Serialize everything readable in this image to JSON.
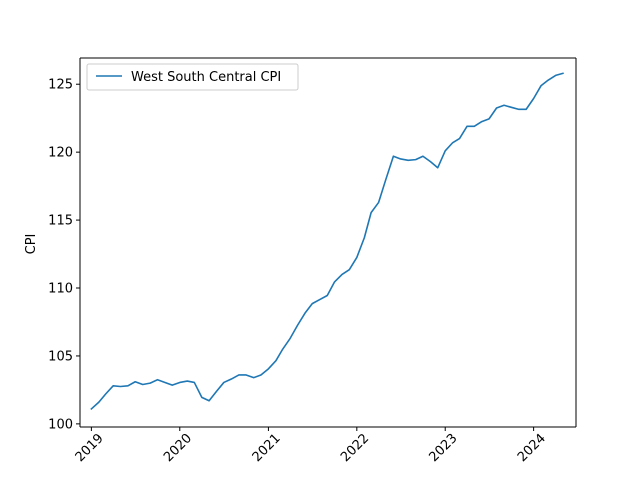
{
  "chart_data": {
    "type": "line",
    "title": "",
    "xlabel": "",
    "ylabel": "CPI",
    "xlim": [
      "2018-11-15",
      "2024-06-24"
    ],
    "ylim": [
      99.77,
      126.93
    ],
    "x_ticks": [
      "2019",
      "2020",
      "2021",
      "2022",
      "2023",
      "2024"
    ],
    "y_ticks": [
      "100",
      "105",
      "110",
      "115",
      "120",
      "125"
    ],
    "grid": false,
    "legend_position": "upper-left",
    "series": [
      {
        "name": "West South Central CPI",
        "color": "#1f77b4",
        "x": [
          "2019-01",
          "2019-02",
          "2019-03",
          "2019-04",
          "2019-05",
          "2019-06",
          "2019-07",
          "2019-08",
          "2019-09",
          "2019-10",
          "2019-11",
          "2019-12",
          "2020-01",
          "2020-02",
          "2020-03",
          "2020-04",
          "2020-05",
          "2020-06",
          "2020-07",
          "2020-08",
          "2020-09",
          "2020-10",
          "2020-11",
          "2020-12",
          "2021-01",
          "2021-02",
          "2021-03",
          "2021-04",
          "2021-05",
          "2021-06",
          "2021-07",
          "2021-08",
          "2021-09",
          "2021-10",
          "2021-11",
          "2021-12",
          "2022-01",
          "2022-02",
          "2022-03",
          "2022-04",
          "2022-05",
          "2022-06",
          "2022-07",
          "2022-08",
          "2022-09",
          "2022-10",
          "2022-11",
          "2022-12",
          "2023-01",
          "2023-02",
          "2023-03",
          "2023-04",
          "2023-05",
          "2023-06",
          "2023-07",
          "2023-08",
          "2023-09",
          "2023-10",
          "2023-11",
          "2023-12",
          "2024-01",
          "2024-02",
          "2024-03",
          "2024-04",
          "2024-05"
        ],
        "values": [
          101.1,
          101.6,
          102.2,
          102.8,
          102.75,
          102.8,
          103.1,
          102.9,
          103.0,
          103.25,
          103.05,
          102.85,
          103.05,
          103.15,
          103.05,
          101.95,
          101.7,
          102.4,
          103.05,
          103.3,
          103.6,
          103.6,
          103.4,
          103.6,
          104.05,
          104.65,
          105.5,
          106.3,
          107.25,
          108.15,
          108.85,
          109.15,
          109.45,
          110.45,
          111.0,
          111.35,
          112.25,
          113.7,
          115.55,
          116.3,
          118.0,
          119.7,
          119.5,
          119.4,
          119.45,
          119.7,
          119.3,
          118.85,
          120.1,
          120.7,
          121.0,
          121.9,
          121.9,
          122.25,
          122.45,
          123.25,
          123.45,
          123.3,
          123.15,
          123.15,
          123.95,
          124.9,
          125.3,
          125.65,
          125.8
        ]
      }
    ]
  }
}
